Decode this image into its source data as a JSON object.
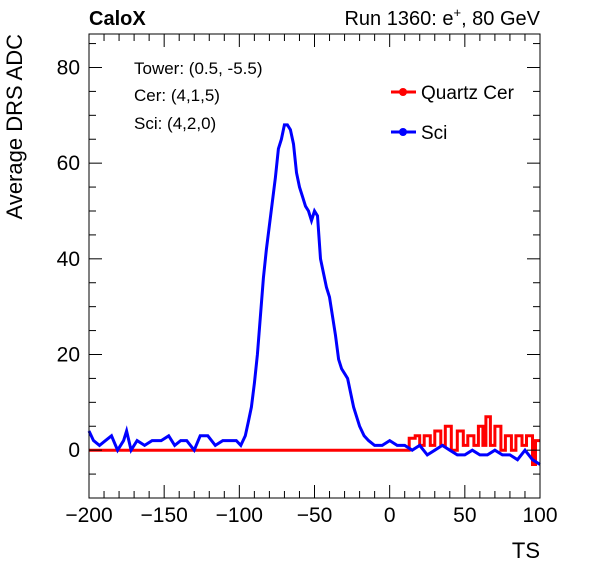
{
  "header": {
    "left": "CaloX",
    "right_prefix": "Run 1360: e",
    "right_sup": "+",
    "right_suffix": ", 80 GeV"
  },
  "info_box": {
    "tower": "Tower: (0.5, -5.5)",
    "cer": "Cer: (4,1,5)",
    "sci": "Sci: (4,2,0)"
  },
  "colors": {
    "quartz_cer": "#ff0000",
    "sci": "#0000ff"
  },
  "chart_data": {
    "type": "line",
    "title": "",
    "xlabel": "TS",
    "ylabel": "Average DRS ADC",
    "xlim": [
      -200,
      100
    ],
    "ylim": [
      -10,
      87
    ],
    "x_ticks": [
      -200,
      -150,
      -100,
      -50,
      0,
      50,
      100
    ],
    "y_ticks": [
      0,
      20,
      40,
      60,
      80
    ],
    "grid": false,
    "legend_position": "top-right",
    "series": [
      {
        "name": "Quartz Cer",
        "color": "#ff0000",
        "points": [
          [
            -200,
            0
          ],
          [
            10,
            0
          ],
          [
            13,
            0
          ],
          [
            13,
            2.5
          ],
          [
            17,
            2.5
          ],
          [
            17,
            3
          ],
          [
            20,
            3
          ],
          [
            20,
            1
          ],
          [
            23,
            1
          ],
          [
            23,
            3
          ],
          [
            27,
            3
          ],
          [
            27,
            1
          ],
          [
            30,
            1
          ],
          [
            30,
            4
          ],
          [
            34,
            4
          ],
          [
            34,
            1
          ],
          [
            37,
            1
          ],
          [
            37,
            5
          ],
          [
            41,
            5
          ],
          [
            41,
            0
          ],
          [
            45,
            0
          ],
          [
            45,
            4
          ],
          [
            49,
            4
          ],
          [
            49,
            1
          ],
          [
            52,
            1
          ],
          [
            52,
            3
          ],
          [
            56,
            3
          ],
          [
            56,
            1
          ],
          [
            59,
            1
          ],
          [
            59,
            5
          ],
          [
            62,
            5
          ],
          [
            62,
            1
          ],
          [
            64,
            1
          ],
          [
            64,
            7
          ],
          [
            67,
            7
          ],
          [
            67,
            1
          ],
          [
            70,
            1
          ],
          [
            70,
            5
          ],
          [
            74,
            5
          ],
          [
            74,
            0
          ],
          [
            77,
            0
          ],
          [
            77,
            3
          ],
          [
            81,
            3
          ],
          [
            81,
            0
          ],
          [
            84,
            0
          ],
          [
            84,
            3
          ],
          [
            88,
            3
          ],
          [
            88,
            1
          ],
          [
            91,
            1
          ],
          [
            91,
            3
          ],
          [
            95,
            3
          ],
          [
            95,
            -3
          ],
          [
            97,
            -3
          ],
          [
            97,
            2
          ],
          [
            100,
            2
          ]
        ]
      },
      {
        "name": "Sci",
        "color": "#0000ff",
        "points": [
          [
            -200,
            4
          ],
          [
            -197,
            2
          ],
          [
            -193,
            1
          ],
          [
            -189,
            2
          ],
          [
            -185,
            3
          ],
          [
            -181,
            0
          ],
          [
            -177,
            2
          ],
          [
            -175,
            4
          ],
          [
            -172,
            0
          ],
          [
            -168,
            2
          ],
          [
            -163,
            1
          ],
          [
            -158,
            2
          ],
          [
            -152,
            2
          ],
          [
            -147,
            3
          ],
          [
            -143,
            1
          ],
          [
            -139,
            2
          ],
          [
            -135,
            2
          ],
          [
            -130,
            0
          ],
          [
            -126,
            3
          ],
          [
            -121,
            3
          ],
          [
            -116,
            1
          ],
          [
            -111,
            2
          ],
          [
            -106,
            2
          ],
          [
            -102,
            2
          ],
          [
            -99,
            1
          ],
          [
            -96,
            3
          ],
          [
            -94,
            6
          ],
          [
            -92,
            9
          ],
          [
            -90,
            14
          ],
          [
            -88,
            20
          ],
          [
            -86,
            28
          ],
          [
            -84,
            36
          ],
          [
            -82,
            42
          ],
          [
            -80,
            47
          ],
          [
            -78,
            52
          ],
          [
            -76,
            57
          ],
          [
            -74,
            63
          ],
          [
            -72,
            65
          ],
          [
            -70,
            68
          ],
          [
            -68,
            68
          ],
          [
            -66,
            67
          ],
          [
            -64,
            64
          ],
          [
            -62,
            58
          ],
          [
            -60,
            55
          ],
          [
            -58,
            53
          ],
          [
            -56,
            51
          ],
          [
            -54,
            50
          ],
          [
            -52,
            48
          ],
          [
            -50,
            50
          ],
          [
            -48,
            49
          ],
          [
            -46,
            40
          ],
          [
            -44,
            37
          ],
          [
            -42,
            34
          ],
          [
            -40,
            32
          ],
          [
            -38,
            28
          ],
          [
            -36,
            24
          ],
          [
            -34,
            19
          ],
          [
            -32,
            17
          ],
          [
            -30,
            16
          ],
          [
            -28,
            15
          ],
          [
            -26,
            12
          ],
          [
            -24,
            9
          ],
          [
            -22,
            7
          ],
          [
            -20,
            5
          ],
          [
            -17,
            3
          ],
          [
            -14,
            2
          ],
          [
            -10,
            1
          ],
          [
            -5,
            1
          ],
          [
            0,
            2
          ],
          [
            5,
            1
          ],
          [
            10,
            1
          ],
          [
            15,
            0
          ],
          [
            20,
            1
          ],
          [
            25,
            -1
          ],
          [
            30,
            0
          ],
          [
            35,
            1
          ],
          [
            40,
            0
          ],
          [
            45,
            -1
          ],
          [
            50,
            -1
          ],
          [
            55,
            0
          ],
          [
            60,
            -1
          ],
          [
            65,
            -1
          ],
          [
            70,
            0
          ],
          [
            75,
            -1
          ],
          [
            80,
            -1
          ],
          [
            85,
            -2
          ],
          [
            90,
            0
          ],
          [
            95,
            -2
          ],
          [
            100,
            -3
          ]
        ]
      }
    ]
  }
}
